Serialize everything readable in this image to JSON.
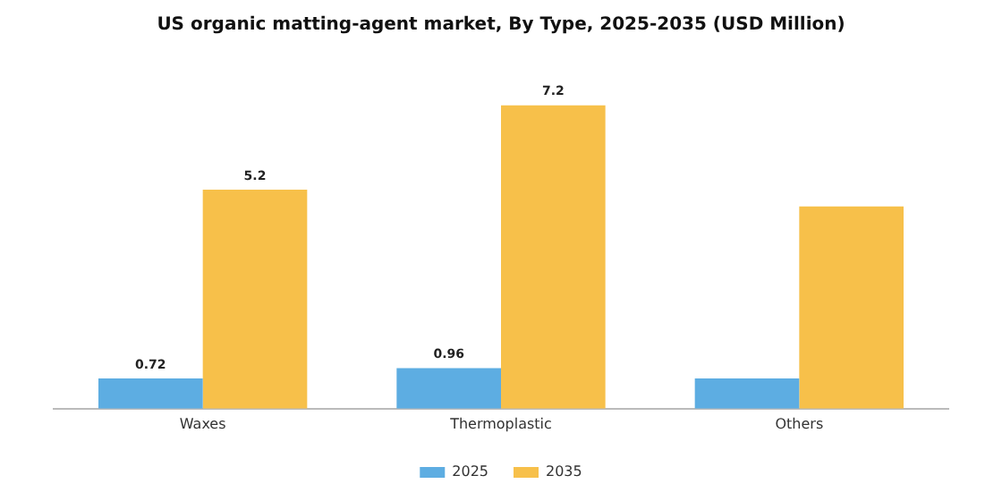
{
  "chart_data": {
    "type": "bar",
    "title": "US organic matting-agent market, By Type, 2025-2035 (USD Million)",
    "categories": [
      "Waxes",
      "Thermoplastic",
      "Others"
    ],
    "series": [
      {
        "name": "2025",
        "color": "#5dade2",
        "values": [
          0.72,
          0.96,
          0.72
        ],
        "value_labels": [
          "0.72",
          "0.96",
          null
        ]
      },
      {
        "name": "2035",
        "color": "#f7c04a",
        "values": [
          5.2,
          7.2,
          4.8
        ],
        "value_labels": [
          "5.2",
          "7.2",
          null
        ]
      }
    ],
    "legend": "bottom",
    "grid": false
  }
}
